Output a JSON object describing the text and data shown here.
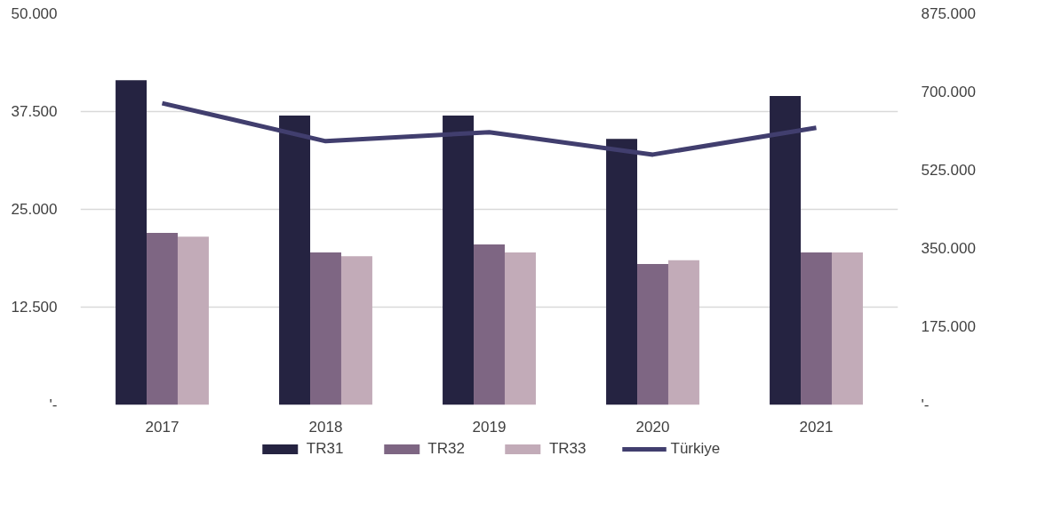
{
  "chart_data": {
    "type": "bar",
    "categories": [
      "2017",
      "2018",
      "2019",
      "2020",
      "2021"
    ],
    "series": [
      {
        "name": "TR31",
        "color": "#252341",
        "values": [
          41500,
          37000,
          37000,
          34000,
          39500
        ]
      },
      {
        "name": "TR32",
        "color": "#7e6683",
        "values": [
          22000,
          19500,
          20500,
          18000,
          19500
        ]
      },
      {
        "name": "TR33",
        "color": "#c2abb8",
        "values": [
          21500,
          19000,
          19500,
          18500,
          19500
        ]
      },
      {
        "name": "Türkiye",
        "type": "line",
        "axis": "y2",
        "color": "#413e6e",
        "values": [
          675000,
          590000,
          610000,
          560000,
          620000
        ]
      }
    ],
    "ylim": [
      0,
      50000
    ],
    "yticks": [
      {
        "value": 0,
        "label": "'-"
      },
      {
        "value": 12500,
        "label": "12.500"
      },
      {
        "value": 25000,
        "label": "25.000"
      },
      {
        "value": 37500,
        "label": "37.500"
      },
      {
        "value": 50000,
        "label": "50.000"
      }
    ],
    "y2lim": [
      0,
      875000
    ],
    "y2ticks": [
      {
        "value": 0,
        "label": "'-"
      },
      {
        "value": 175000,
        "label": "175.000"
      },
      {
        "value": 350000,
        "label": "350.000"
      },
      {
        "value": 525000,
        "label": "525.000"
      },
      {
        "value": 700000,
        "label": "700.000"
      },
      {
        "value": 875000,
        "label": "875.000"
      }
    ],
    "grid": "y",
    "legend": "bottom",
    "marker": "none",
    "line_style": "solid"
  }
}
